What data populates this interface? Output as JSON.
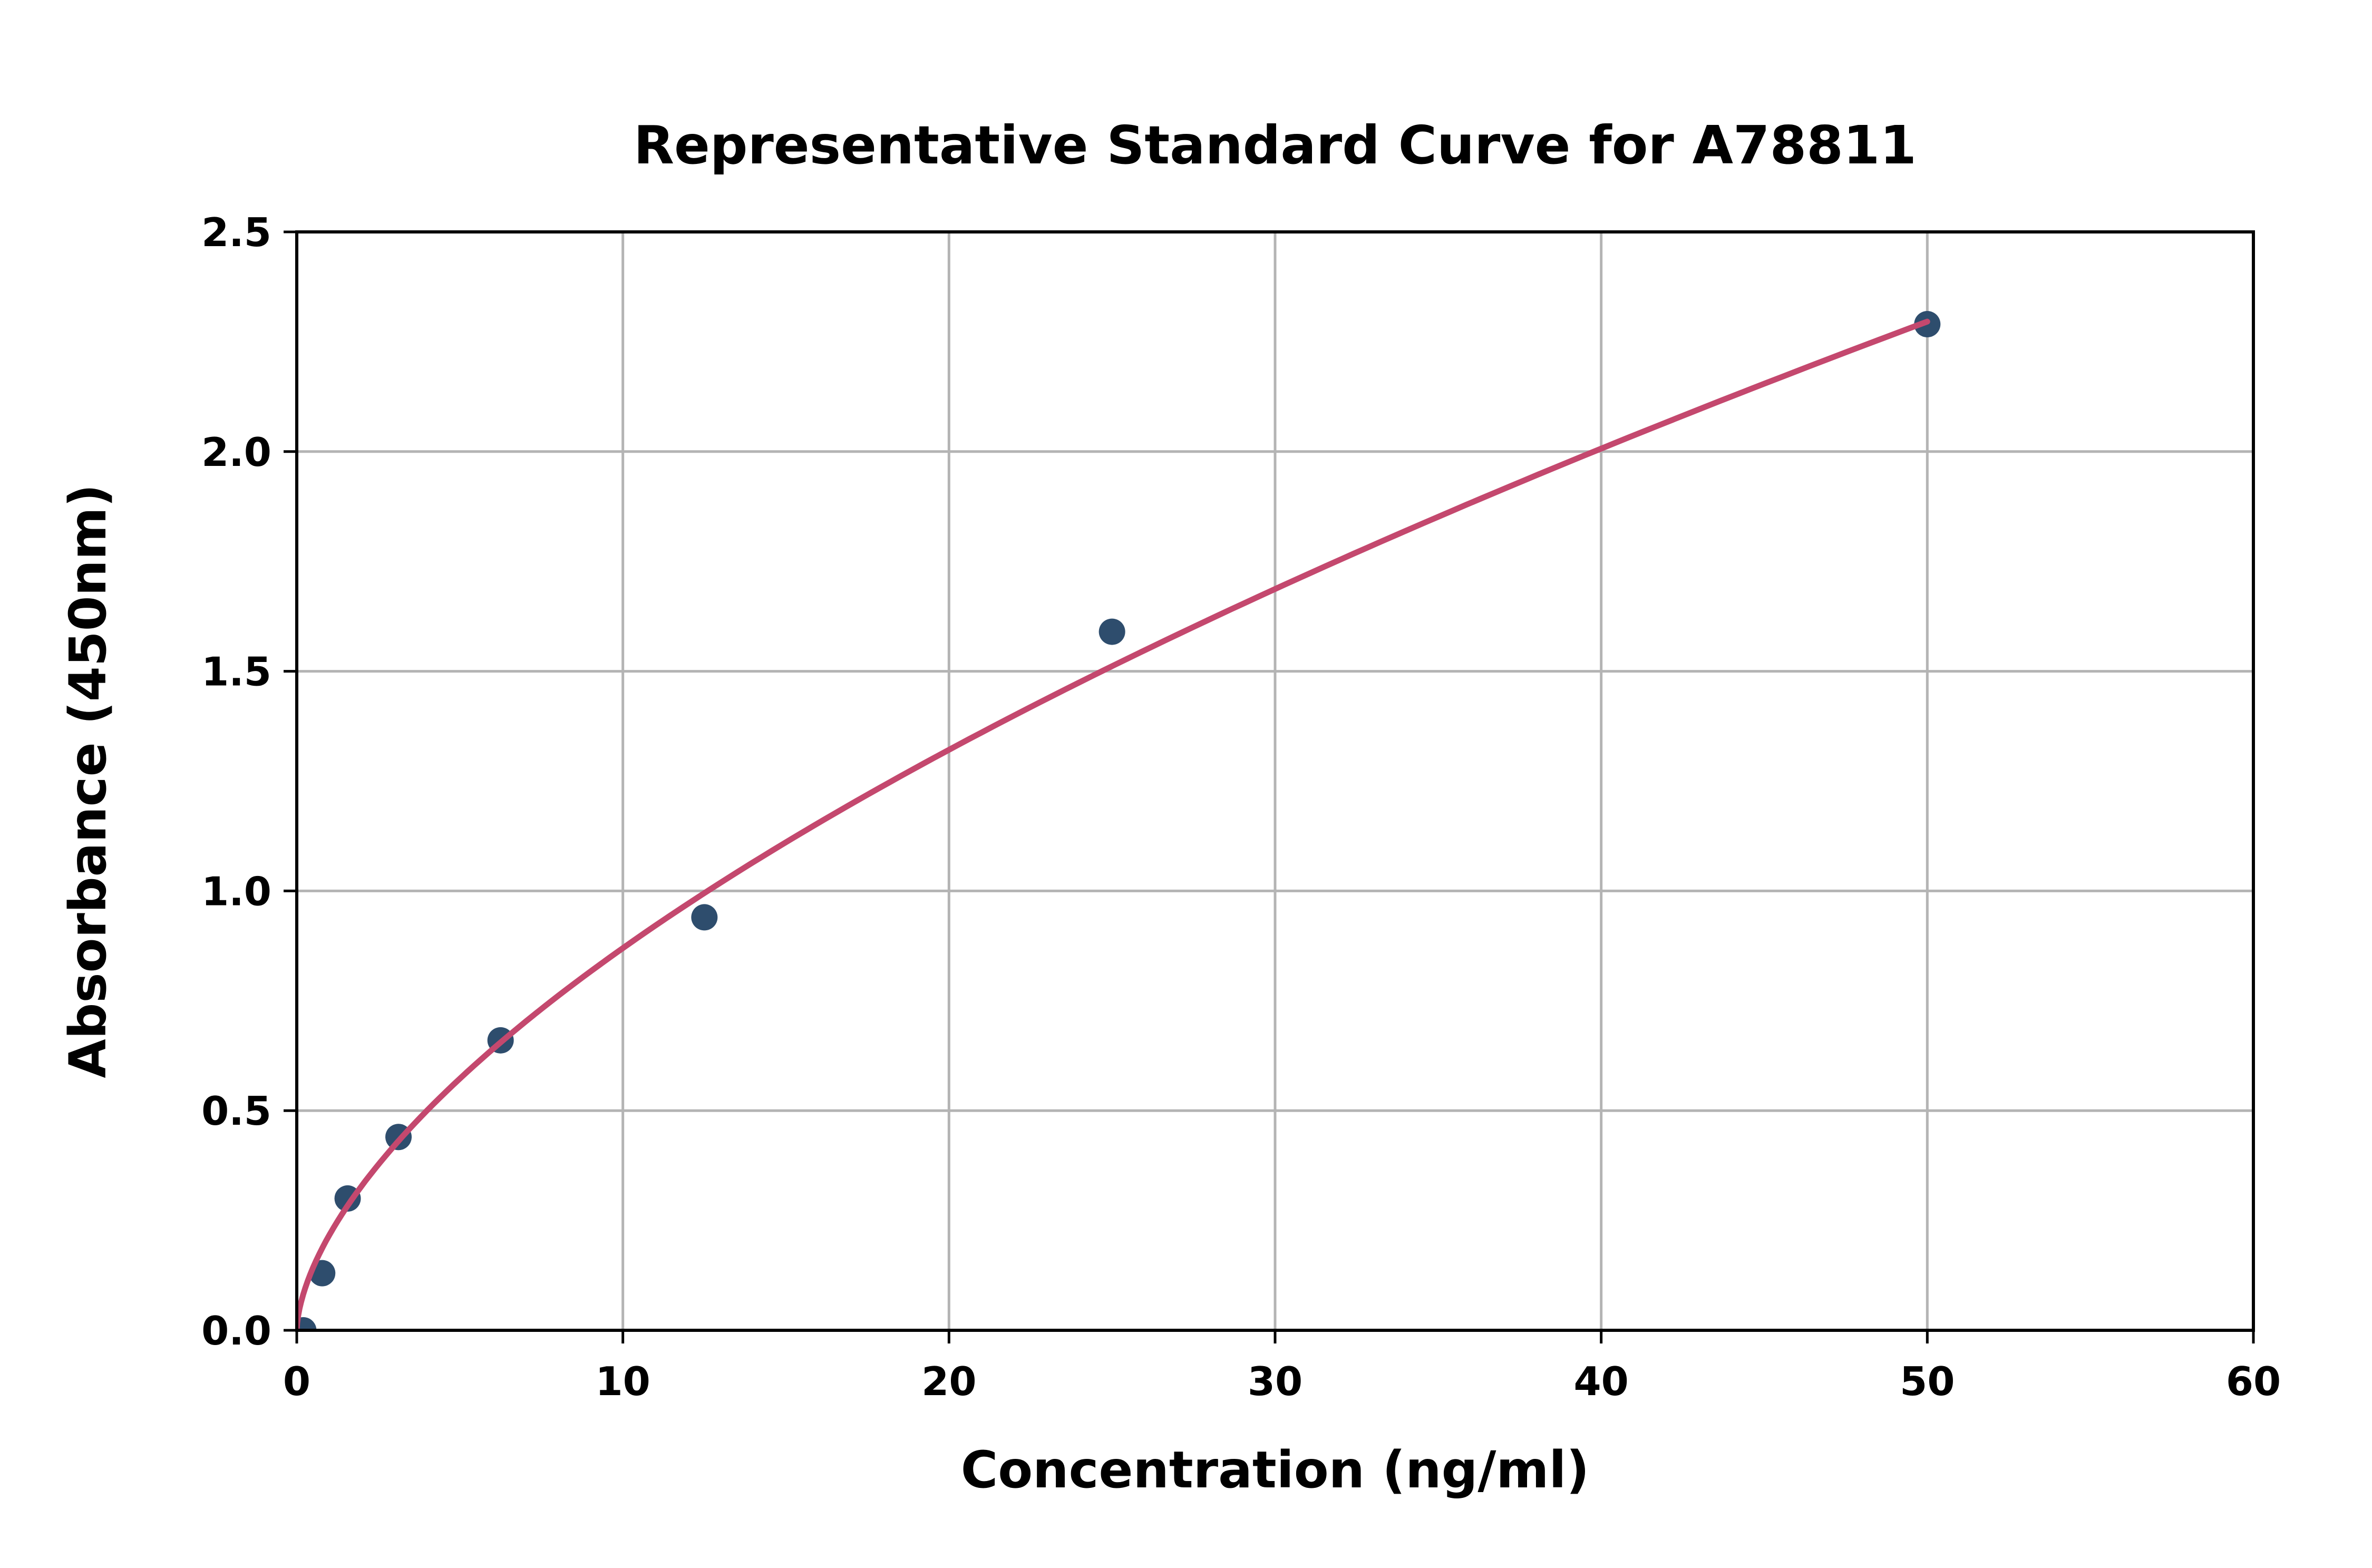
{
  "page": {
    "background": "#ffffff"
  },
  "chart_data": {
    "type": "scatter",
    "title": "Representative Standard Curve for A78811",
    "xlabel": "Concentration (ng/ml)",
    "ylabel": "Absorbance (450nm)",
    "xlim": [
      0,
      60
    ],
    "ylim": [
      0,
      2.5
    ],
    "x_ticks": [
      0,
      10,
      20,
      30,
      40,
      50,
      60
    ],
    "y_ticks": [
      0.0,
      0.5,
      1.0,
      1.5,
      2.0,
      2.5
    ],
    "y_tick_decimals": 1,
    "grid": true,
    "legend_position": "none",
    "points": [
      {
        "x": 0.2,
        "y": 0.0
      },
      {
        "x": 0.78,
        "y": 0.13
      },
      {
        "x": 1.56,
        "y": 0.3
      },
      {
        "x": 3.12,
        "y": 0.44
      },
      {
        "x": 6.25,
        "y": 0.66
      },
      {
        "x": 12.5,
        "y": 0.94
      },
      {
        "x": 25,
        "y": 1.59
      },
      {
        "x": 50,
        "y": 2.29
      }
    ],
    "fit_curve": {
      "type": "power",
      "equation": "y = 0.217 * x^0.603",
      "a": 0.217,
      "b": 0.603,
      "x_start": 0,
      "x_end": 50
    },
    "marker_radius_px": 25,
    "colors": {
      "marker": "#2E4D6D",
      "curve": "#C4486E",
      "grid": "#B4B4B4",
      "axis": "#000000",
      "text": "#000000"
    }
  }
}
